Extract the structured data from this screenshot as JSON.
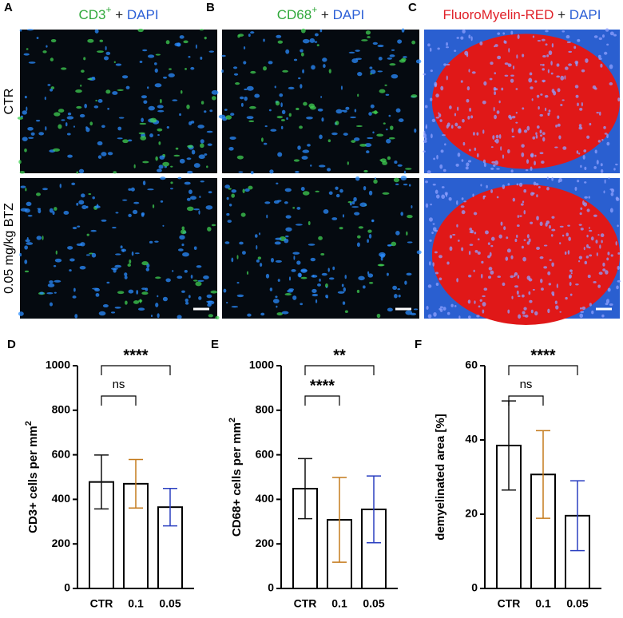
{
  "panels": [
    {
      "letter": "A",
      "header": [
        {
          "text": "CD3",
          "color": "#2fa83a"
        },
        {
          "text": "+",
          "color": "#2fa83a",
          "sup": true
        },
        {
          "text": " + ",
          "color": "#222222"
        },
        {
          "text": "DAPI",
          "color": "#2b5fd6"
        }
      ]
    },
    {
      "letter": "B",
      "header": [
        {
          "text": "CD68",
          "color": "#2fa83a"
        },
        {
          "text": "+",
          "color": "#2fa83a",
          "sup": true
        },
        {
          "text": " + ",
          "color": "#222222"
        },
        {
          "text": "DAPI",
          "color": "#2b5fd6"
        }
      ]
    },
    {
      "letter": "C",
      "header": [
        {
          "text": "FluoroMyelin-RED",
          "color": "#e0222a"
        },
        {
          "text": " + ",
          "color": "#222222"
        },
        {
          "text": "DAPI",
          "color": "#2b5fd6"
        }
      ]
    }
  ],
  "row_labels": [
    "CTR",
    "0.05 mg/kg BTZ"
  ],
  "chart_data": [
    {
      "type": "bar",
      "panel_label": "D",
      "ylabel": "CD3+ cells per mm",
      "ylabel_sup": "2",
      "categories": [
        "CTR",
        "0.1",
        "0.05"
      ],
      "values": [
        478,
        470,
        365
      ],
      "errors": [
        121,
        109,
        84
      ],
      "colors": [
        "#111111",
        "#c47a1c",
        "#2a3fc0"
      ],
      "ylim": [
        0,
        1000
      ],
      "yticks": [
        0,
        200,
        400,
        600,
        800,
        1000
      ],
      "comparisons": [
        {
          "groups": [
            "CTR",
            "0.1"
          ],
          "label": "ns"
        },
        {
          "groups": [
            "CTR",
            "0.05"
          ],
          "label": "****"
        }
      ]
    },
    {
      "type": "bar",
      "panel_label": "E",
      "ylabel": "CD68+ cells per mm",
      "ylabel_sup": "2",
      "categories": [
        "CTR",
        "0.1",
        "0.05"
      ],
      "values": [
        448,
        308,
        355
      ],
      "errors": [
        135,
        190,
        150
      ],
      "colors": [
        "#111111",
        "#c47a1c",
        "#2a3fc0"
      ],
      "ylim": [
        0,
        1000
      ],
      "yticks": [
        0,
        200,
        400,
        600,
        800,
        1000
      ],
      "comparisons": [
        {
          "groups": [
            "CTR",
            "0.1"
          ],
          "label": "****"
        },
        {
          "groups": [
            "CTR",
            "0.05"
          ],
          "label": "**"
        }
      ]
    },
    {
      "type": "bar",
      "panel_label": "F",
      "ylabel": "demyelinated area [%]",
      "categories": [
        "CTR",
        "0.1",
        "0.05"
      ],
      "values": [
        38.5,
        30.7,
        19.6
      ],
      "errors": [
        12,
        11.8,
        9.4
      ],
      "colors": [
        "#111111",
        "#c47a1c",
        "#2a3fc0"
      ],
      "ylim": [
        0,
        60
      ],
      "yticks": [
        0,
        20,
        40,
        60
      ],
      "comparisons": [
        {
          "groups": [
            "CTR",
            "0.1"
          ],
          "label": "ns"
        },
        {
          "groups": [
            "CTR",
            "0.05"
          ],
          "label": "****"
        }
      ]
    }
  ]
}
